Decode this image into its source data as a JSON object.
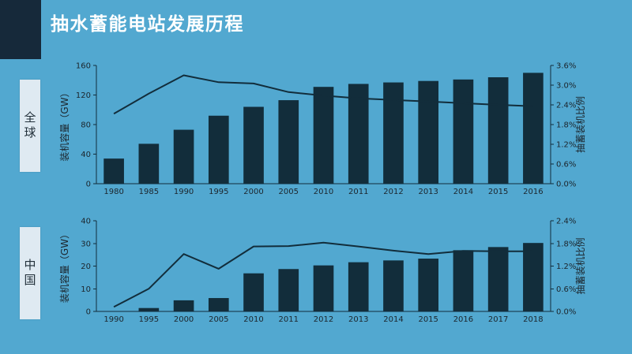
{
  "slide": {
    "title": "抽水蓄能电站发展历程"
  },
  "colors": {
    "background": "#52a8d0",
    "dark": "#122d3b",
    "accent_square": "#16293a",
    "plate_bg": "#dfeaf2",
    "title_text": "#ffffff",
    "axis_text": "#1c252c"
  },
  "chart_data": [
    {
      "type": "bar",
      "region_label": "全球",
      "categories": [
        "1980",
        "1985",
        "1990",
        "1995",
        "2000",
        "2005",
        "2010",
        "2011",
        "2012",
        "2013",
        "2014",
        "2015",
        "2016"
      ],
      "series": [
        {
          "name": "装机容量",
          "type": "bar",
          "axis": "left",
          "values": [
            34,
            54,
            73,
            92,
            104,
            113,
            131,
            135,
            137,
            139,
            141,
            144,
            150
          ]
        },
        {
          "name": "抽蓄装机比例",
          "type": "line",
          "axis": "right",
          "values": [
            2.13,
            2.74,
            3.3,
            3.09,
            3.05,
            2.79,
            2.68,
            2.6,
            2.55,
            2.5,
            2.45,
            2.4,
            2.36
          ]
        }
      ],
      "left_axis": {
        "label": "装机容量（GW）",
        "min": 0,
        "max": 160,
        "tick_values": [
          0,
          40,
          80,
          120,
          160
        ],
        "tick_labels": [
          "0",
          "40",
          "80",
          "120",
          "160"
        ]
      },
      "right_axis": {
        "label": "抽蓄装机比例",
        "min": 0,
        "max": 3.6,
        "tick_values": [
          0,
          0.6,
          1.2,
          1.8,
          2.4,
          3.0,
          3.6
        ],
        "tick_labels": [
          "0.0%",
          "0.6%",
          "1.2%",
          "1.8%",
          "2.4%",
          "3.0%",
          "3.6%"
        ]
      },
      "grid": false,
      "legend": "none"
    },
    {
      "type": "bar",
      "region_label": "中国",
      "categories": [
        "1990",
        "1995",
        "2000",
        "2005",
        "2010",
        "2011",
        "2012",
        "2013",
        "2014",
        "2015",
        "2016",
        "2017",
        "2018"
      ],
      "series": [
        {
          "name": "装机容量",
          "type": "bar",
          "axis": "left",
          "values": [
            0,
            1.5,
            4.9,
            5.9,
            16.8,
            18.7,
            20.3,
            21.7,
            22.5,
            23.3,
            27.0,
            28.4,
            30.2
          ]
        },
        {
          "name": "抽蓄装机比例",
          "type": "line",
          "axis": "right",
          "values": [
            0.12,
            0.6,
            1.52,
            1.13,
            1.72,
            1.73,
            1.82,
            1.72,
            1.61,
            1.52,
            1.6,
            1.59,
            1.59
          ]
        }
      ],
      "left_axis": {
        "label": "装机容量（GW）",
        "min": 0,
        "max": 40,
        "tick_values": [
          0,
          10,
          20,
          30,
          40
        ],
        "tick_labels": [
          "0",
          "10",
          "20",
          "30",
          "40"
        ]
      },
      "right_axis": {
        "label": "抽蓄装机比例",
        "min": 0,
        "max": 2.4,
        "tick_values": [
          0,
          0.6,
          1.2,
          1.8,
          2.4
        ],
        "tick_labels": [
          "0.0%",
          "0.6%",
          "1.2%",
          "1.8%",
          "2.4%"
        ]
      },
      "grid": false,
      "legend": "none"
    }
  ]
}
